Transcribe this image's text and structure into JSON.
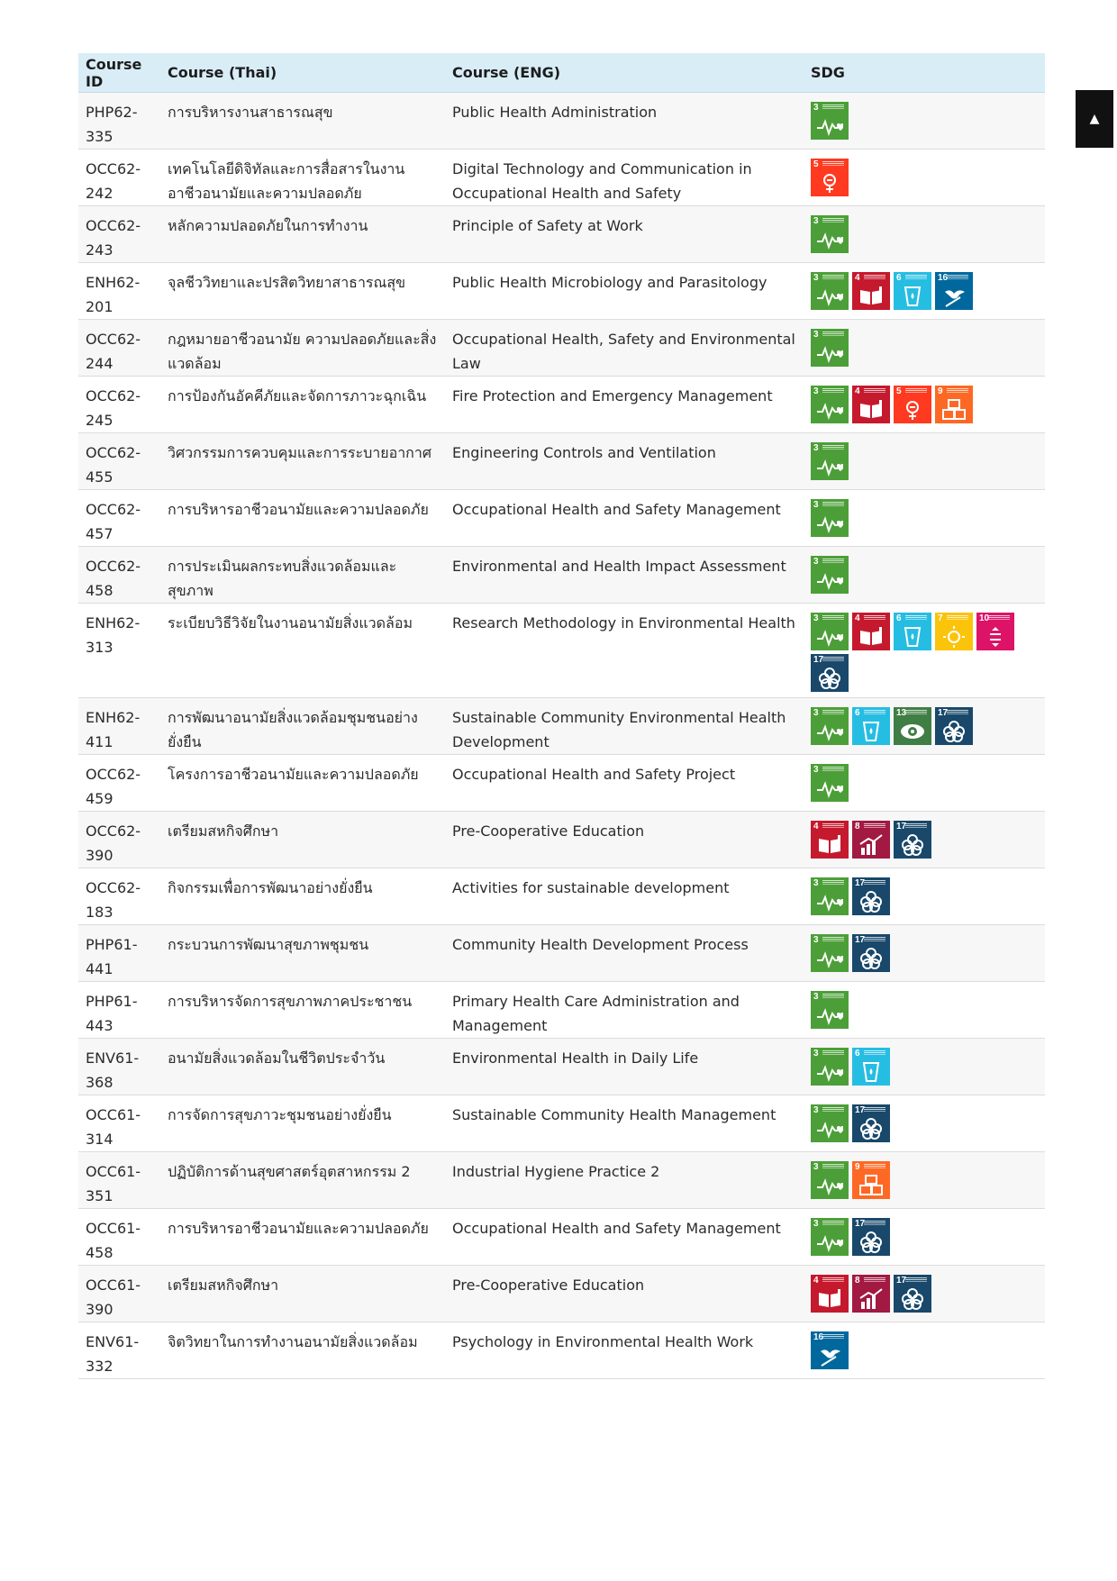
{
  "headers": {
    "id": "Course ID",
    "thai": "Course (Thai)",
    "eng": "Course (ENG)",
    "sdg": "SDG"
  },
  "sdg_colors": {
    "3": "#4c9f38",
    "4": "#c5192d",
    "5": "#ff3a21",
    "6": "#26bde2",
    "7": "#fcc30b",
    "8": "#a21942",
    "9": "#fd6925",
    "10": "#dd1367",
    "13": "#3f7e44",
    "16": "#00689d",
    "17": "#19486a"
  },
  "sdg_icons": {
    "3": "heartbeat-icon",
    "4": "book-icon",
    "5": "gender-icon",
    "6": "water-glass-icon",
    "7": "sun-power-icon",
    "8": "growth-chart-icon",
    "9": "cubes-icon",
    "10": "equality-icon",
    "13": "eye-earth-icon",
    "16": "dove-gavel-icon",
    "17": "flower-rings-icon"
  },
  "rows": [
    {
      "id": "PHP62-335",
      "thai": "การบริหารงานสาธารณสุข",
      "eng": "Public Health Administration",
      "sdg": [
        "3"
      ]
    },
    {
      "id": "OCC62-242",
      "thai": "เทคโนโลยีดิจิทัลและการสื่อสารในงานอาชีวอนามัยและความปลอดภัย",
      "eng": "Digital Technology and Communication in Occupational Health and Safety",
      "sdg": [
        "5"
      ]
    },
    {
      "id": "OCC62-243",
      "thai": "หลักความปลอดภัยในการทำงาน",
      "eng": "Principle of Safety at Work",
      "sdg": [
        "3"
      ]
    },
    {
      "id": "ENH62-201",
      "thai": "จุลชีววิทยาและปรสิตวิทยาสาธารณสุข",
      "eng": "Public Health Microbiology and Parasitology",
      "sdg": [
        "3",
        "4",
        "6",
        "16"
      ]
    },
    {
      "id": "OCC62-244",
      "thai": "กฎหมายอาชีวอนามัย ความปลอดภัยและสิ่งแวดล้อม",
      "eng": "Occupational Health, Safety and Environmental Law",
      "sdg": [
        "3"
      ]
    },
    {
      "id": "OCC62-245",
      "thai": "การป้องกันอัคคีภัยและจัดการภาวะฉุกเฉิน",
      "eng": "Fire Protection and Emergency Management",
      "sdg": [
        "3",
        "4",
        "5",
        "9"
      ]
    },
    {
      "id": "OCC62-455",
      "thai": "วิศวกรรมการควบคุมและการระบายอากาศ",
      "eng": "Engineering Controls and Ventilation",
      "sdg": [
        "3"
      ]
    },
    {
      "id": "OCC62-457",
      "thai": "การบริหารอาชีวอนามัยและความปลอดภัย",
      "eng": "Occupational Health and Safety Management",
      "sdg": [
        "3"
      ]
    },
    {
      "id": "OCC62-458",
      "thai": "การประเมินผลกระทบสิ่งแวดล้อมและสุขภาพ",
      "eng": "Environmental and Health Impact Assessment",
      "sdg": [
        "3"
      ]
    },
    {
      "id": "ENH62-313",
      "thai": "ระเบียบวิธีวิจัยในงานอนามัยสิ่งแวดล้อม",
      "eng": "Research Methodology in Environmental Health",
      "sdg": [
        "3",
        "4",
        "6",
        "7",
        "10",
        "17"
      ]
    },
    {
      "id": "ENH62-411",
      "thai": "การพัฒนาอนามัยสิ่งแวดล้อมชุมชนอย่างยั่งยืน",
      "eng": "Sustainable Community Environmental Health Development",
      "sdg": [
        "3",
        "6",
        "13",
        "17"
      ]
    },
    {
      "id": "OCC62-459",
      "thai": "โครงการอาชีวอนามัยและความปลอดภัย",
      "eng": "Occupational Health and Safety Project",
      "sdg": [
        "3"
      ]
    },
    {
      "id": "OCC62-390",
      "thai": "เตรียมสหกิจศึกษา",
      "eng": "Pre-Cooperative Education",
      "sdg": [
        "4",
        "8",
        "17"
      ]
    },
    {
      "id": "OCC62-183",
      "thai": "กิจกรรมเพื่อการพัฒนาอย่างยั่งยืน",
      "eng": "Activities for sustainable development",
      "sdg": [
        "3",
        "17"
      ]
    },
    {
      "id": "PHP61-441",
      "thai": "กระบวนการพัฒนาสุขภาพชุมชน",
      "eng": "Community Health Development Process",
      "sdg": [
        "3",
        "17"
      ]
    },
    {
      "id": "PHP61-443",
      "thai": "การบริหารจัดการสุขภาพภาคประชาชน",
      "eng": "Primary Health Care Administration and Management",
      "sdg": [
        "3"
      ]
    },
    {
      "id": "ENV61-368",
      "thai": "อนามัยสิ่งแวดล้อมในชีวิตประจำวัน",
      "eng": "Environmental Health in Daily Life",
      "sdg": [
        "3",
        "6"
      ]
    },
    {
      "id": "OCC61-314",
      "thai": "การจัดการสุขภาวะชุมชนอย่างยั่งยืน",
      "eng": "Sustainable Community Health Management",
      "sdg": [
        "3",
        "17"
      ]
    },
    {
      "id": "OCC61-351",
      "thai": "ปฏิบัติการด้านสุขศาสตร์อุตสาหกรรม 2",
      "eng": "Industrial Hygiene Practice 2",
      "sdg": [
        "3",
        "9"
      ]
    },
    {
      "id": "OCC61-458",
      "thai": "การบริหารอาชีวอนามัยและความปลอดภัย",
      "eng": "Occupational Health and Safety Management",
      "sdg": [
        "3",
        "17"
      ]
    },
    {
      "id": "OCC61-390",
      "thai": "เตรียมสหกิจศึกษา",
      "eng": "Pre-Cooperative Education",
      "sdg": [
        "4",
        "8",
        "17"
      ]
    },
    {
      "id": "ENV61-332",
      "thai": "จิตวิทยาในการทำงานอนามัยสิ่งแวดล้อม",
      "eng": "Psychology in Environmental Health Work",
      "sdg": [
        "16"
      ]
    }
  ],
  "scroll_top": {
    "icon": "chevron-up-icon",
    "glyph": "▲"
  }
}
